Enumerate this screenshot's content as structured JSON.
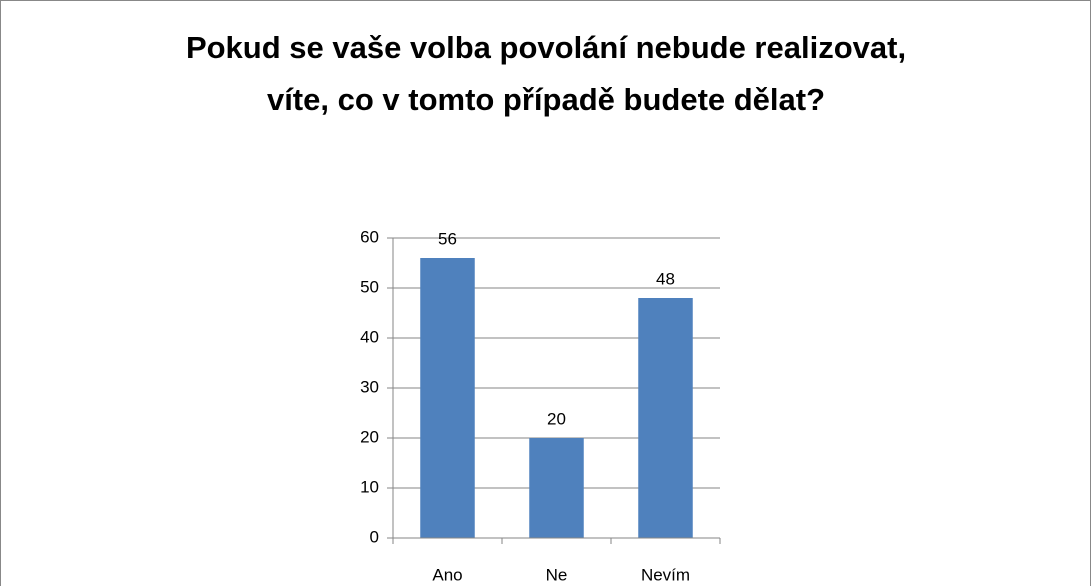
{
  "chart_data": {
    "type": "bar",
    "title": [
      "Pokud se vaše volba povolání nebude realizovat,",
      "víte, co v tomto případě budete dělat?"
    ],
    "categories": [
      "Ano",
      "Ne",
      "Nevím"
    ],
    "values": [
      56,
      20,
      48
    ],
    "color": "#4f81bd",
    "ylim": [
      0,
      60
    ],
    "yticks": [
      0,
      10,
      20,
      30,
      40,
      50,
      60
    ],
    "grid": true
  }
}
